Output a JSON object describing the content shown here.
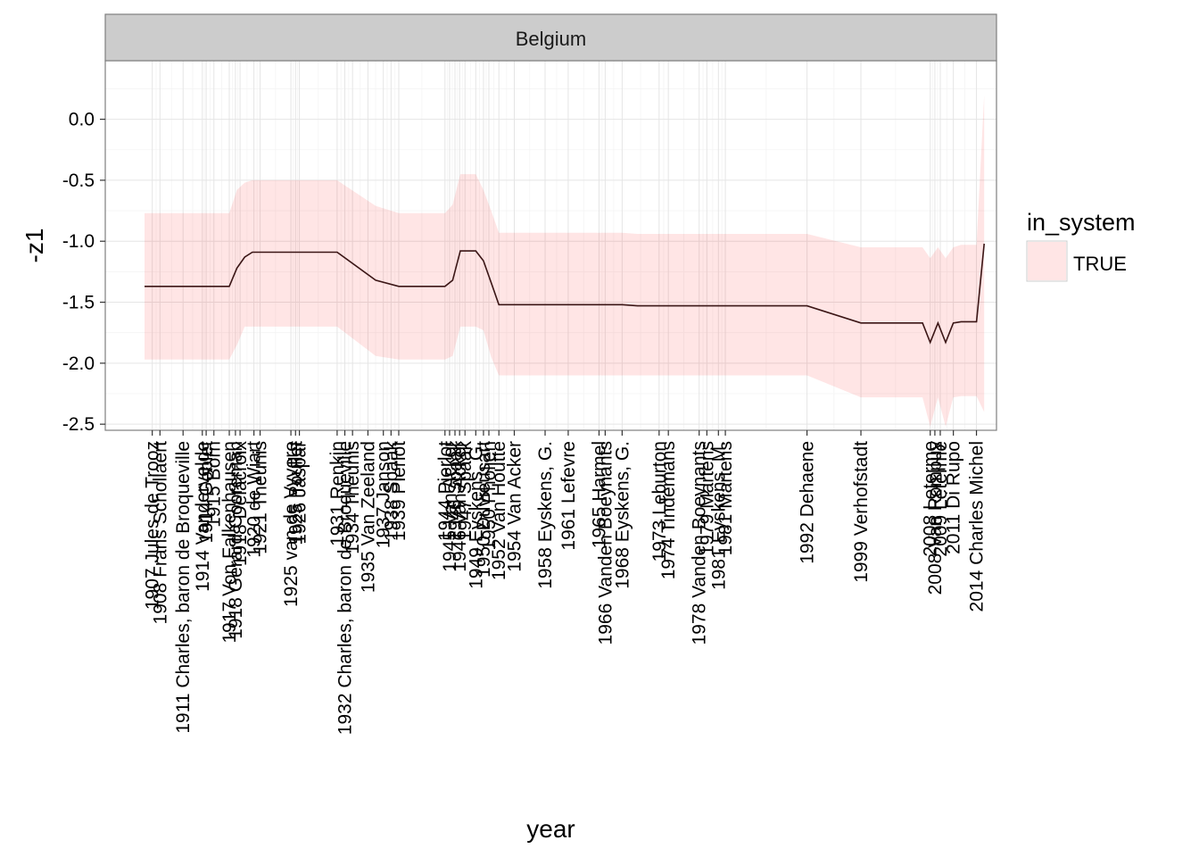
{
  "chart_data": {
    "type": "line",
    "facet": "Belgium",
    "xlabel": "year",
    "ylabel": "-z1",
    "ylim": [
      -2.55,
      0.48
    ],
    "y_ticks": [
      0.0,
      -0.5,
      -1.0,
      -1.5,
      -2.0,
      -2.5
    ],
    "y_tick_labels": [
      "0.0",
      "-0.5",
      "-1.0",
      "-1.5",
      "-2.0",
      "-2.5"
    ],
    "xlim": [
      1900.9,
      2016.6
    ],
    "legend": {
      "title": "in_system",
      "entries": [
        "TRUE"
      ],
      "placement": "right"
    },
    "grid": true,
    "colors": {
      "ribbon": "#ff0000",
      "ribbon_opacity": 0.1,
      "line": "#3b1616",
      "grid_major": "#e5e5e5",
      "grid_minor": "#f4f4f4",
      "strip_bg": "#cccccc",
      "panel_border": "#7f7f7f"
    },
    "series": [
      {
        "x": [
          1906,
          1917,
          1918,
          1919,
          1920,
          1921,
          1926,
          1931,
          1936,
          1939,
          1940,
          1941,
          1942,
          1943,
          1944,
          1945,
          1946,
          1947,
          1948,
          1949,
          1950,
          1951,
          1952,
          1953,
          1954,
          1958,
          1961,
          1966,
          1968,
          1970,
          1973,
          1974,
          1978,
          1980,
          1981,
          1992,
          1999,
          2007,
          2008,
          2009,
          2010,
          2011,
          2012,
          2014,
          2015
        ],
        "y": [
          -1.37,
          -1.37,
          -1.22,
          -1.13,
          -1.09,
          -1.09,
          -1.09,
          -1.09,
          -1.32,
          -1.37,
          -1.37,
          -1.37,
          -1.37,
          -1.37,
          -1.37,
          -1.37,
          -1.32,
          -1.08,
          -1.08,
          -1.08,
          -1.16,
          -1.34,
          -1.52,
          -1.52,
          -1.52,
          -1.52,
          -1.52,
          -1.52,
          -1.52,
          -1.53,
          -1.53,
          -1.53,
          -1.53,
          -1.53,
          -1.53,
          -1.53,
          -1.67,
          -1.67,
          -1.83,
          -1.67,
          -1.83,
          -1.67,
          -1.66,
          -1.66,
          -1.02
        ],
        "lower": [
          -1.97,
          -1.97,
          -1.85,
          -1.7,
          -1.7,
          -1.7,
          -1.7,
          -1.7,
          -1.94,
          -1.97,
          -1.97,
          -1.97,
          -1.97,
          -1.97,
          -1.97,
          -1.97,
          -1.94,
          -1.7,
          -1.7,
          -1.7,
          -1.73,
          -1.95,
          -2.1,
          -2.1,
          -2.1,
          -2.1,
          -2.1,
          -2.1,
          -2.1,
          -2.1,
          -2.1,
          -2.1,
          -2.1,
          -2.1,
          -2.1,
          -2.1,
          -2.28,
          -2.28,
          -2.52,
          -2.28,
          -2.52,
          -2.28,
          -2.27,
          -2.27,
          -2.4
        ],
        "upper": [
          -0.77,
          -0.77,
          -0.58,
          -0.52,
          -0.5,
          -0.5,
          -0.5,
          -0.5,
          -0.71,
          -0.77,
          -0.77,
          -0.77,
          -0.77,
          -0.77,
          -0.77,
          -0.77,
          -0.7,
          -0.45,
          -0.45,
          -0.45,
          -0.58,
          -0.75,
          -0.93,
          -0.93,
          -0.93,
          -0.93,
          -0.93,
          -0.93,
          -0.93,
          -0.94,
          -0.94,
          -0.94,
          -0.94,
          -0.94,
          -0.94,
          -0.94,
          -1.05,
          -1.05,
          -1.14,
          -1.05,
          -1.14,
          -1.05,
          -1.03,
          -1.03,
          0.2
        ]
      }
    ],
    "events": [
      {
        "year": 1907.0,
        "label": "1907 Jules de Trooz"
      },
      {
        "year": 1908.0,
        "label": "1908 Frans Schollaert"
      },
      {
        "year": 1911.0,
        "label": "1911 Charles, baron de Broqueville"
      },
      {
        "year": 1913.5,
        "label": "1914 Vandervelde"
      },
      {
        "year": 1914.0,
        "label": "1914 Goblet"
      },
      {
        "year": 1915.0,
        "label": "1915 Born"
      },
      {
        "year": 1917.0,
        "label": "1917 Von Falkenhausen"
      },
      {
        "year": 1917.8,
        "label": "1918 Gerard Cooreman"
      },
      {
        "year": 1918.4,
        "label": "1918 Delacroix"
      },
      {
        "year": 1920.2,
        "label": "1920 de Wiart"
      },
      {
        "year": 1921.0,
        "label": "1921 Theunis"
      },
      {
        "year": 1925.0,
        "label": "1925 van de Vyvere"
      },
      {
        "year": 1925.6,
        "label": "1925 Poullet"
      },
      {
        "year": 1926.1,
        "label": "1926 Jaspar"
      },
      {
        "year": 1931.0,
        "label": "1931 Renkin"
      },
      {
        "year": 1932.0,
        "label": "1932 Charles, baron de Broqueville"
      },
      {
        "year": 1933.0,
        "label": "1934 Theunis"
      },
      {
        "year": 1935.0,
        "label": "1935 Van Zeeland"
      },
      {
        "year": 1937.0,
        "label": "1937 Janson"
      },
      {
        "year": 1938.0,
        "label": "1938 Spaak"
      },
      {
        "year": 1939.0,
        "label": "1939 Pierlot"
      },
      {
        "year": 1945.0,
        "label": "1944 Pierlot"
      },
      {
        "year": 1945.6,
        "label": "1945 Van Acker"
      },
      {
        "year": 1946.3,
        "label": "1946 Spaak"
      },
      {
        "year": 1946.9,
        "label": "1946 Van Acker"
      },
      {
        "year": 1947.6,
        "label": "1947 Spaak"
      },
      {
        "year": 1949.0,
        "label": "1949 Eyskens, G."
      },
      {
        "year": 1950.0,
        "label": "1950 Duvieusart"
      },
      {
        "year": 1950.7,
        "label": "1950 Pholien"
      },
      {
        "year": 1952.0,
        "label": "1952 Van Houtte"
      },
      {
        "year": 1954.0,
        "label": "1954 Van Acker"
      },
      {
        "year": 1958.0,
        "label": "1958 Eyskens, G."
      },
      {
        "year": 1961.0,
        "label": "1961 Lefevre"
      },
      {
        "year": 1965.0,
        "label": "1965 Harmel"
      },
      {
        "year": 1965.8,
        "label": "1966 Vanden Boeynants"
      },
      {
        "year": 1968.0,
        "label": "1968 Eyskens, G."
      },
      {
        "year": 1972.8,
        "label": "1973 Leburton"
      },
      {
        "year": 1974.0,
        "label": "1974 Tindemans"
      },
      {
        "year": 1978.0,
        "label": "1978 Vanden Boeynants"
      },
      {
        "year": 1979.0,
        "label": "1979 Martens"
      },
      {
        "year": 1980.5,
        "label": "1981 Eyskens, M."
      },
      {
        "year": 1981.4,
        "label": "1981 Martens"
      },
      {
        "year": 1992.0,
        "label": "1992 Dehaene"
      },
      {
        "year": 1999.0,
        "label": "1999 Verhofstadt"
      },
      {
        "year": 2008.0,
        "label": "2008 Leterme"
      },
      {
        "year": 2008.6,
        "label": "2008 Van Rompuy"
      },
      {
        "year": 2009.3,
        "label": "2009 Leterme"
      },
      {
        "year": 2011.0,
        "label": "2011 Di Rupo"
      },
      {
        "year": 2014.0,
        "label": "2014 Charles Michel"
      }
    ]
  }
}
